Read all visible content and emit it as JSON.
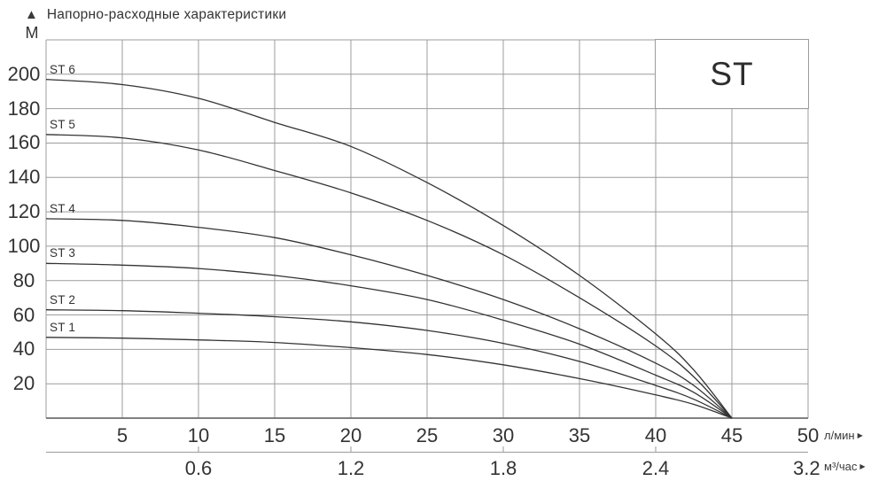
{
  "header": {
    "arrow_up_icon": "▲",
    "title": "Напорно-расходные характеристики",
    "y_unit": "М"
  },
  "legend": {
    "label": "ST"
  },
  "axes": {
    "x_primary": {
      "tick_values": [
        5,
        10,
        15,
        20,
        25,
        30,
        35,
        40,
        45,
        50
      ],
      "unit": "л/мин",
      "arrow_icon": "▶"
    },
    "x_secondary": {
      "labels": [
        {
          "text": "0.6",
          "at_q": 10,
          "tick": true
        },
        {
          "text": "1.2",
          "at_q": 20,
          "tick": true
        },
        {
          "text": "1.8",
          "at_q": 30,
          "tick": true
        },
        {
          "text": "2.4",
          "at_q": 40,
          "tick": true
        },
        {
          "text": "3.2",
          "at_q": 49.9,
          "tick": false
        }
      ],
      "unit": "м³/час",
      "arrow_icon": "▶"
    },
    "y": {
      "tick_values": [
        20,
        40,
        60,
        80,
        100,
        120,
        140,
        160,
        180,
        200
      ]
    }
  },
  "chart_data": {
    "type": "line",
    "title": "Напорно-расходные характеристики",
    "ylabel": "М",
    "xlabel_primary": "л/мин",
    "xlabel_secondary": "м³/час",
    "xlim": [
      0,
      50
    ],
    "ylim": [
      0,
      220
    ],
    "x_grid_step": 5,
    "y_grid_step": 20,
    "grid": true,
    "legend_position": "top-right",
    "x": [
      0,
      5,
      10,
      15,
      20,
      25,
      30,
      35,
      40,
      42.5,
      45
    ],
    "series": [
      {
        "name": "ST 6",
        "values": [
          197,
          194,
          186,
          172,
          158,
          137,
          112,
          83,
          49,
          28,
          0
        ]
      },
      {
        "name": "ST 5",
        "values": [
          165,
          163,
          156,
          144,
          131,
          115,
          95,
          70,
          42,
          24,
          0
        ]
      },
      {
        "name": "ST 4",
        "values": [
          116,
          115,
          111,
          105,
          95,
          83,
          69,
          52,
          32,
          19,
          0
        ]
      },
      {
        "name": "ST 3",
        "values": [
          90,
          89,
          87,
          83,
          77,
          69,
          57,
          43,
          25,
          15,
          0
        ]
      },
      {
        "name": "ST 2",
        "values": [
          63,
          62.5,
          61,
          59,
          56,
          51,
          43.5,
          33,
          19,
          11,
          0
        ]
      },
      {
        "name": "ST 1",
        "values": [
          47,
          46.5,
          45.5,
          44,
          41,
          37,
          31,
          23,
          13.5,
          8,
          0
        ]
      }
    ]
  },
  "colors": {
    "text": "#333333",
    "grid": "#9c9c9c",
    "axis": "#6e6e6e",
    "secondary_axis": "#a8a8a8",
    "curve": "#333333",
    "background": "#ffffff"
  }
}
